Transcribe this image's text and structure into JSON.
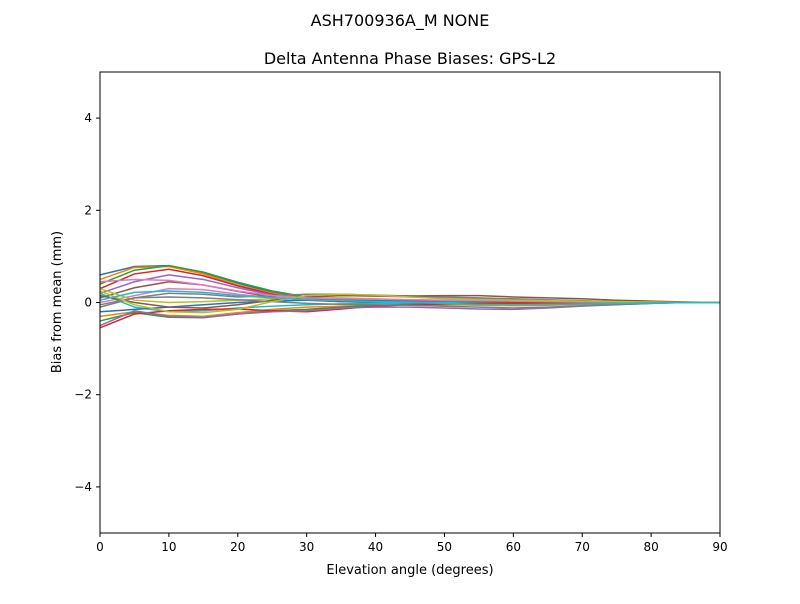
{
  "chart_data": {
    "type": "line",
    "suptitle": "ASH700936A_M    NONE",
    "title": "Delta Antenna Phase Biases: GPS-L2",
    "xlabel": "Elevation angle (degrees)",
    "ylabel": "Bias from mean (mm)",
    "xlim": [
      0,
      90
    ],
    "ylim": [
      -5,
      5
    ],
    "xticks": [
      0,
      10,
      20,
      30,
      40,
      50,
      60,
      70,
      80,
      90
    ],
    "yticks": [
      -4,
      -2,
      0,
      2,
      4
    ],
    "ytick_labels": [
      "−4",
      "−2",
      "0",
      "2",
      "4"
    ],
    "grid": false,
    "x": [
      0,
      5,
      10,
      15,
      20,
      25,
      30,
      35,
      40,
      45,
      50,
      55,
      60,
      65,
      70,
      75,
      80,
      85,
      90
    ],
    "colors": [
      "#1f77b4",
      "#ff7f0e",
      "#2ca02c",
      "#d62728",
      "#9467bd",
      "#8c564b",
      "#e377c2",
      "#7f7f7f",
      "#bcbd22",
      "#17becf"
    ],
    "series": [
      {
        "values": [
          0.6,
          0.78,
          0.8,
          0.65,
          0.42,
          0.22,
          0.1,
          0.05,
          0.03,
          0.02,
          0.02,
          0.02,
          0.02,
          0.01,
          0.01,
          0.01,
          0.01,
          0.0,
          0
        ]
      },
      {
        "values": [
          0.5,
          0.76,
          0.78,
          0.62,
          0.38,
          0.2,
          0.08,
          0.04,
          0.02,
          0.02,
          0.02,
          0.01,
          0.01,
          0.01,
          0.01,
          0.01,
          0.0,
          0.0,
          0
        ]
      },
      {
        "values": [
          0.4,
          0.7,
          0.8,
          0.66,
          0.44,
          0.25,
          0.12,
          0.06,
          0.04,
          0.03,
          0.02,
          0.02,
          0.02,
          0.02,
          0.01,
          0.01,
          0.01,
          0.0,
          0
        ]
      },
      {
        "values": [
          0.3,
          0.62,
          0.72,
          0.58,
          0.36,
          0.18,
          0.06,
          0.02,
          0.01,
          0.0,
          0.0,
          0.0,
          0.0,
          0.0,
          0.0,
          0.0,
          0.0,
          0.0,
          0
        ]
      },
      {
        "values": [
          0.2,
          0.45,
          0.6,
          0.5,
          0.32,
          0.16,
          0.08,
          0.05,
          0.03,
          0.02,
          0.02,
          0.02,
          0.01,
          0.01,
          0.01,
          0.0,
          0.0,
          0.0,
          0
        ]
      },
      {
        "values": [
          0.1,
          0.32,
          0.45,
          0.38,
          0.24,
          0.12,
          0.05,
          0.02,
          0.0,
          -0.02,
          -0.03,
          -0.03,
          -0.03,
          -0.02,
          -0.02,
          -0.01,
          -0.01,
          0.0,
          0
        ]
      },
      {
        "values": [
          0.0,
          0.15,
          0.3,
          0.28,
          0.18,
          0.1,
          0.12,
          0.15,
          0.14,
          0.12,
          0.1,
          0.08,
          0.06,
          0.05,
          0.03,
          0.02,
          0.01,
          0.0,
          0
        ]
      },
      {
        "values": [
          -0.1,
          0.1,
          0.2,
          0.18,
          0.12,
          0.15,
          0.18,
          0.18,
          0.16,
          0.14,
          0.12,
          0.1,
          0.08,
          0.06,
          0.04,
          0.02,
          0.01,
          0.0,
          0
        ]
      },
      {
        "values": [
          0.3,
          0.05,
          0.0,
          0.02,
          0.05,
          0.08,
          0.1,
          0.1,
          0.08,
          0.06,
          0.05,
          0.04,
          0.03,
          0.02,
          0.02,
          0.01,
          0.0,
          0.0,
          0
        ]
      },
      {
        "values": [
          0.2,
          -0.1,
          -0.2,
          -0.18,
          -0.12,
          -0.08,
          -0.05,
          -0.03,
          -0.02,
          -0.01,
          0.0,
          0.02,
          0.03,
          0.03,
          0.02,
          0.01,
          0.0,
          0.0,
          0
        ]
      },
      {
        "values": [
          -0.2,
          -0.15,
          -0.1,
          -0.05,
          0.0,
          0.03,
          0.05,
          0.06,
          0.05,
          0.05,
          0.04,
          0.03,
          0.02,
          0.02,
          0.01,
          0.01,
          0.0,
          0.0,
          0
        ]
      },
      {
        "values": [
          -0.3,
          -0.2,
          -0.28,
          -0.3,
          -0.22,
          -0.15,
          -0.1,
          -0.08,
          -0.06,
          -0.05,
          -0.05,
          -0.06,
          -0.07,
          -0.06,
          -0.04,
          -0.02,
          -0.01,
          0.0,
          0
        ]
      },
      {
        "values": [
          -0.4,
          -0.22,
          -0.32,
          -0.33,
          -0.25,
          -0.18,
          -0.15,
          -0.1,
          -0.06,
          -0.04,
          -0.03,
          -0.02,
          -0.01,
          0.0,
          0.0,
          0.0,
          0.0,
          0.0,
          0
        ]
      },
      {
        "values": [
          -0.55,
          -0.25,
          -0.18,
          -0.15,
          -0.14,
          -0.18,
          -0.2,
          -0.14,
          -0.08,
          -0.05,
          -0.03,
          -0.02,
          -0.01,
          0.0,
          0.0,
          0.0,
          0.0,
          0.0,
          0
        ]
      },
      {
        "values": [
          -0.5,
          -0.18,
          -0.3,
          -0.32,
          -0.25,
          -0.2,
          -0.18,
          -0.12,
          -0.1,
          -0.1,
          -0.12,
          -0.14,
          -0.15,
          -0.12,
          -0.08,
          -0.05,
          -0.02,
          0.0,
          0
        ]
      },
      {
        "values": [
          0.15,
          0.0,
          -0.1,
          -0.12,
          -0.05,
          0.05,
          0.12,
          0.15,
          0.14,
          0.14,
          0.15,
          0.15,
          0.12,
          0.1,
          0.08,
          0.05,
          0.03,
          0.01,
          0
        ]
      },
      {
        "values": [
          0.45,
          0.5,
          0.48,
          0.38,
          0.25,
          0.15,
          0.1,
          0.08,
          0.07,
          0.06,
          0.05,
          0.04,
          0.03,
          0.02,
          0.01,
          0.01,
          0.0,
          0.0,
          0
        ]
      },
      {
        "values": [
          -0.05,
          0.1,
          0.12,
          0.1,
          0.06,
          0.02,
          -0.02,
          -0.04,
          -0.05,
          -0.06,
          -0.08,
          -0.1,
          -0.12,
          -0.1,
          -0.07,
          -0.04,
          -0.02,
          0.0,
          0
        ]
      },
      {
        "values": [
          0.25,
          -0.05,
          -0.2,
          -0.22,
          -0.15,
          0.02,
          0.15,
          0.18,
          0.16,
          0.12,
          0.08,
          0.06,
          0.05,
          0.04,
          0.03,
          0.02,
          0.01,
          0.0,
          0
        ]
      },
      {
        "values": [
          0.05,
          0.22,
          0.25,
          0.22,
          0.15,
          0.1,
          0.06,
          0.04,
          0.02,
          0.0,
          -0.02,
          -0.04,
          -0.05,
          -0.04,
          -0.03,
          -0.02,
          -0.01,
          0.0,
          0
        ]
      }
    ]
  }
}
